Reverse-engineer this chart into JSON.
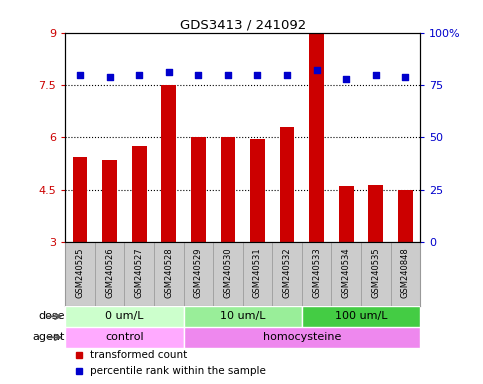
{
  "title": "GDS3413 / 241092",
  "samples": [
    "GSM240525",
    "GSM240526",
    "GSM240527",
    "GSM240528",
    "GSM240529",
    "GSM240530",
    "GSM240531",
    "GSM240532",
    "GSM240533",
    "GSM240534",
    "GSM240535",
    "GSM240848"
  ],
  "bar_values": [
    5.45,
    5.35,
    5.75,
    7.5,
    6.0,
    6.0,
    5.95,
    6.3,
    8.95,
    4.6,
    4.65,
    4.5
  ],
  "dot_values": [
    80,
    79,
    80,
    81,
    80,
    80,
    80,
    80,
    82,
    78,
    80,
    79
  ],
  "bar_color": "#cc0000",
  "dot_color": "#0000cc",
  "ylim_left": [
    3,
    9
  ],
  "ylim_right": [
    0,
    100
  ],
  "yticks_left": [
    3,
    4.5,
    6,
    7.5,
    9
  ],
  "yticks_right": [
    0,
    25,
    50,
    75,
    100
  ],
  "hlines": [
    4.5,
    6.0,
    7.5
  ],
  "dose_groups": [
    {
      "label": "0 um/L",
      "start": 0,
      "end": 4,
      "color": "#ccffcc"
    },
    {
      "label": "10 um/L",
      "start": 4,
      "end": 8,
      "color": "#99ee99"
    },
    {
      "label": "100 um/L",
      "start": 8,
      "end": 12,
      "color": "#44cc44"
    }
  ],
  "agent_groups": [
    {
      "label": "control",
      "start": 0,
      "end": 4,
      "color": "#ffaaff"
    },
    {
      "label": "homocysteine",
      "start": 4,
      "end": 12,
      "color": "#ee88ee"
    }
  ],
  "dose_label": "dose",
  "agent_label": "agent",
  "legend_bar": "transformed count",
  "legend_dot": "percentile rank within the sample",
  "background_color": "#ffffff",
  "sample_bg_color": "#cccccc",
  "sample_border_color": "#999999"
}
